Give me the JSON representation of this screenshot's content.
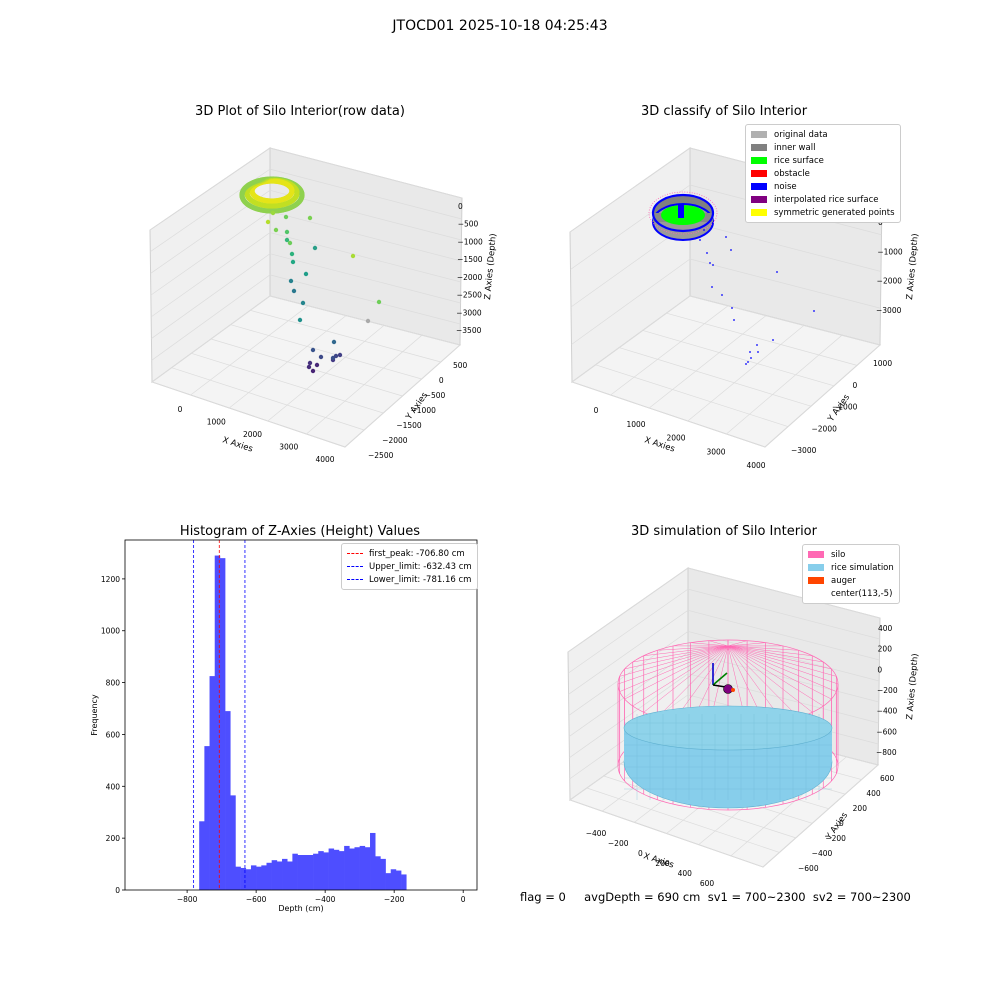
{
  "suptitle": "JTOCD01 2025-10-18 04:25:43",
  "footer": "flag = 0     avgDepth = 690 cm  sv1 = 700~2300  sv2 = 700~2300",
  "colors": {
    "hist": "#4e4eff",
    "first_peak": "#ff0000",
    "limits": "#0000ff",
    "silo": "#ff69b4",
    "rice": "#87ceeb",
    "auger": "#ff4500"
  },
  "chart_data": [
    {
      "type": "scatter3d",
      "title": "3D Plot of Silo Interior(row data)",
      "xlabel": "X Axies",
      "ylabel": "Y Axies",
      "zlabel": "Z Axies (Depth)",
      "x_ticks": [
        "0",
        "1000",
        "2000",
        "3000",
        "4000"
      ],
      "y_ticks": [
        "500",
        "0",
        "−500",
        "−1000",
        "−1500",
        "−2000",
        "−2500"
      ],
      "z_ticks": [
        "0",
        "−500",
        "−1000",
        "−1500",
        "−2000",
        "−2500",
        "−3000",
        "−3500"
      ],
      "xlim": [
        -600,
        4400
      ],
      "ylim": [
        -2600,
        900
      ],
      "zlim": [
        -3800,
        200
      ],
      "grid": true
    },
    {
      "type": "scatter3d",
      "title": "3D classify of Silo Interior",
      "xlabel": "X Axies",
      "ylabel": "Y Axies",
      "zlabel": "Z Axies (Depth)",
      "x_ticks": [
        "0",
        "1000",
        "2000",
        "3000",
        "4000"
      ],
      "y_ticks": [
        "1000",
        "0",
        "−1000",
        "−2000",
        "−3000"
      ],
      "z_ticks": [
        "0",
        "−1000",
        "−2000",
        "−3000"
      ],
      "xlim": [
        -600,
        4400
      ],
      "ylim": [
        -3500,
        1500
      ],
      "zlim": [
        -3800,
        200
      ],
      "grid": true,
      "legend_position": "top-right",
      "legend": [
        {
          "label": "original data",
          "color": "#b0b0b0"
        },
        {
          "label": "inner wall",
          "color": "#808080"
        },
        {
          "label": "rice surface",
          "color": "#00ff00"
        },
        {
          "label": "obstacle",
          "color": "#ff0000"
        },
        {
          "label": "noise",
          "color": "#0000ff"
        },
        {
          "label": "interpolated rice surface",
          "color": "#800080"
        },
        {
          "label": "symmetric generated points",
          "color": "#ffff00"
        }
      ]
    },
    {
      "type": "bar",
      "title": "Histogram of Z-Axies (Height) Values",
      "xlabel": "Depth (cm)",
      "ylabel": "Frequency",
      "xlim": [
        -980,
        40
      ],
      "ylim": [
        0,
        1350
      ],
      "x_ticks": [
        -800,
        -600,
        -400,
        -200,
        0
      ],
      "y_ticks": [
        0,
        200,
        400,
        600,
        800,
        1000,
        1200
      ],
      "bin_start": -765,
      "bin_width": 15,
      "values": [
        265,
        555,
        825,
        1290,
        1280,
        690,
        365,
        90,
        85,
        80,
        95,
        90,
        95,
        105,
        115,
        110,
        120,
        110,
        140,
        135,
        135,
        135,
        140,
        150,
        145,
        160,
        155,
        150,
        170,
        160,
        165,
        170,
        165,
        220,
        130,
        120,
        65,
        80,
        75,
        60
      ],
      "vlines": [
        {
          "x": -706.8,
          "label": "first_peak: -706.80 cm",
          "color": "#ff0000"
        },
        {
          "x": -632.43,
          "label": "Upper_limit: -632.43 cm",
          "color": "#0000ff"
        },
        {
          "x": -781.16,
          "label": "Lower_limit: -781.16 cm",
          "color": "#0000ff"
        }
      ],
      "legend_position": "top-right",
      "grid": false
    },
    {
      "type": "surface3d",
      "title": "3D simulation of Silo Interior",
      "xlabel": "X Axies",
      "ylabel": "Y Axies",
      "zlabel": "Z Axies (Depth)",
      "x_ticks": [
        "−400",
        "−200",
        "0",
        "200",
        "400",
        "600"
      ],
      "y_ticks": [
        "600",
        "400",
        "200",
        "0",
        "−200",
        "−400",
        "−600"
      ],
      "z_ticks": [
        "400",
        "200",
        "0",
        "−200",
        "−400",
        "−600",
        "−800"
      ],
      "xlim": [
        -500,
        700
      ],
      "ylim": [
        -700,
        700
      ],
      "zlim": [
        -900,
        450
      ],
      "grid": true,
      "legend_position": "top-right",
      "legend": [
        {
          "label": "silo",
          "color": "#ff69b4"
        },
        {
          "label": "rice simulation",
          "color": "#87ceeb"
        },
        {
          "label": "auger",
          "color": "#ff4500"
        },
        {
          "label": "center(113,-5)",
          "color": "#ffffff"
        }
      ]
    }
  ]
}
